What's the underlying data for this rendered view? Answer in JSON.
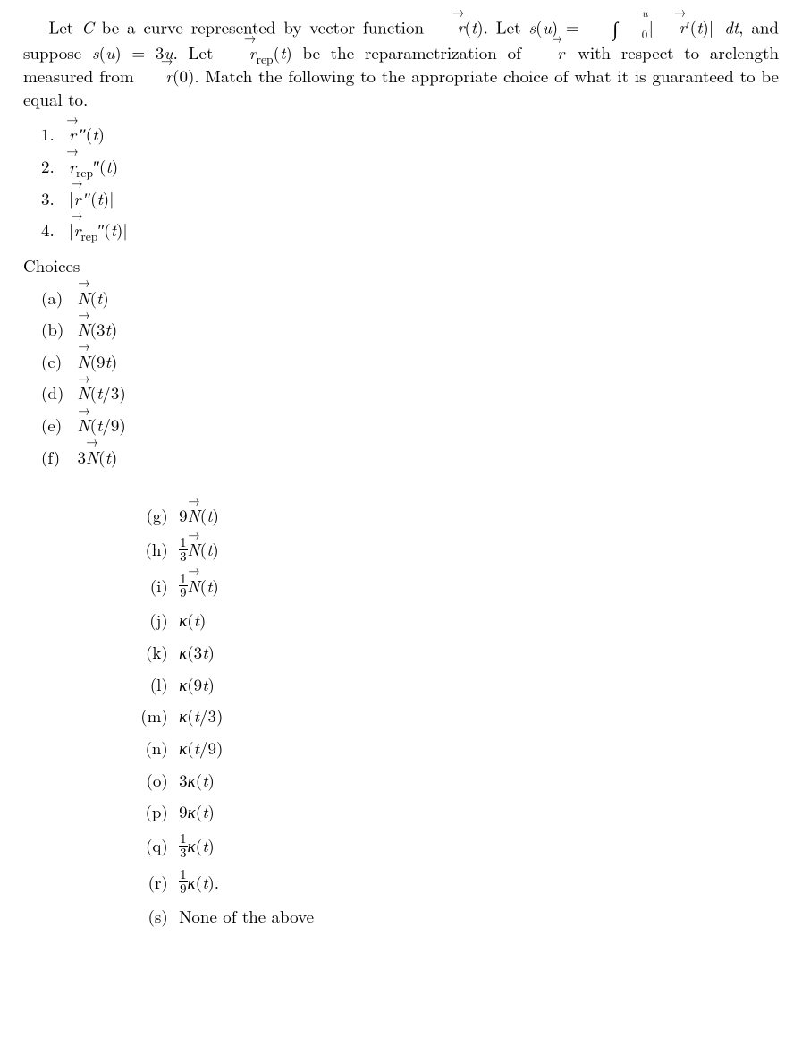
{
  "introHtml": "Let <span class=\"it\">C</span> be a curve represented by vector function <span class=\"vec\"><span class=\"it\">r</span></span>(<span class=\"it\">t</span>). Let <span class=\"it\">s</span>(<span class=\"it\">u</span>) = <span class=\"intsym\">∫</span><span class=\"intlimits\"><span class=\"up\"><span class=\"it\">u</span></span><span class=\"lo\">0</span></span>|<span class=\"vec\"><span class=\"it\">r</span></span>&#x2032;(<span class=\"it\">t</span>)|&nbsp;<span class=\"it\">dt</span>, and suppose <span class=\"it\">s</span>(<span class=\"it\">u</span>) = 3<span class=\"it\">u</span>. Let <span class=\"vec\"><span class=\"it\">r</span></span><sub>rep</sub>(<span class=\"it\">t</span>) be the reparametrization of <span class=\"vec vec-short\"><span class=\"it\">r</span></span>&nbsp;with respect to arclength measured from <span class=\"vec\"><span class=\"it\">r</span></span>(0). Match the following to the appropriate choice of what it is guaranteed to be equal to.",
  "numbered": [
    {
      "label": "1.",
      "html": "<span class=\"vec\"><span class=\"it\">r</span></span>&thinsp;<span class=\"prime\">&#x2033;</span>(<span class=\"it\">t</span>)"
    },
    {
      "label": "2.",
      "html": "<span class=\"vec\"><span class=\"it\">r</span></span><sub>rep</sub><span class=\"prime\">&#x2033;</span>(<span class=\"it\">t</span>)"
    },
    {
      "label": "3.",
      "html": "|<span class=\"vec\"><span class=\"it\">r</span></span>&thinsp;<span class=\"prime\">&#x2033;</span>(<span class=\"it\">t</span>)|"
    },
    {
      "label": "4.",
      "html": "|<span class=\"vec\"><span class=\"it\">r</span></span><sub>rep</sub><span class=\"prime\">&#x2033;</span>(<span class=\"it\">t</span>)|"
    }
  ],
  "choicesHeading": "Choices",
  "choicesGroup1": [
    {
      "label": "(a)",
      "html": "<span class=\"vec\"><span class=\"it\">N</span></span>(<span class=\"it\">t</span>)"
    },
    {
      "label": "(b)",
      "html": "<span class=\"vec\"><span class=\"it\">N</span></span>(3<span class=\"it\">t</span>)"
    },
    {
      "label": "(c)",
      "html": "<span class=\"vec\"><span class=\"it\">N</span></span>(9<span class=\"it\">t</span>)"
    },
    {
      "label": "(d)",
      "html": "<span class=\"vec\"><span class=\"it\">N</span></span>(<span class=\"it\">t</span>/3)"
    },
    {
      "label": "(e)",
      "html": "<span class=\"vec\"><span class=\"it\">N</span></span>(<span class=\"it\">t</span>/9)"
    },
    {
      "label": "(f)",
      "html": "3<span class=\"vec\"><span class=\"it\">N</span></span>(<span class=\"it\">t</span>)"
    }
  ],
  "choicesGroup2": [
    {
      "label": "(g)",
      "html": "9<span class=\"vec\"><span class=\"it\">N</span></span>(<span class=\"it\">t</span>)"
    },
    {
      "label": "(h)",
      "html": "<span class=\"frac\"><span class=\"num\">1</span><span class=\"den\">3</span></span><span class=\"vec\"><span class=\"it\">N</span></span>(<span class=\"it\">t</span>)"
    },
    {
      "label": "(i)",
      "html": "<span class=\"frac\"><span class=\"num\">1</span><span class=\"den\">9</span></span><span class=\"vec\"><span class=\"it\">N</span></span>(<span class=\"it\">t</span>)"
    },
    {
      "label": "(j)",
      "html": "<span class=\"it\">κ</span>(<span class=\"it\">t</span>)"
    },
    {
      "label": "(k)",
      "html": "<span class=\"it\">κ</span>(3<span class=\"it\">t</span>)"
    },
    {
      "label": "(l)",
      "html": "<span class=\"it\">κ</span>(9<span class=\"it\">t</span>)"
    },
    {
      "label": "(m)",
      "html": "<span class=\"it\">κ</span>(<span class=\"it\">t</span>/3)"
    },
    {
      "label": "(n)",
      "html": "<span class=\"it\">κ</span>(<span class=\"it\">t</span>/9)"
    },
    {
      "label": "(o)",
      "html": "3<span class=\"it\">κ</span>(<span class=\"it\">t</span>)"
    },
    {
      "label": "(p)",
      "html": "9<span class=\"it\">κ</span>(<span class=\"it\">t</span>)"
    },
    {
      "label": "(q)",
      "html": "<span class=\"frac\"><span class=\"num\">1</span><span class=\"den\">3</span></span><span class=\"it\">κ</span>(<span class=\"it\">t</span>)"
    },
    {
      "label": "(r)",
      "html": "<span class=\"frac\"><span class=\"num\">1</span><span class=\"den\">9</span></span><span class=\"it\">κ</span>(<span class=\"it\">t</span>)."
    },
    {
      "label": "(s)",
      "html": "None of the above"
    }
  ]
}
